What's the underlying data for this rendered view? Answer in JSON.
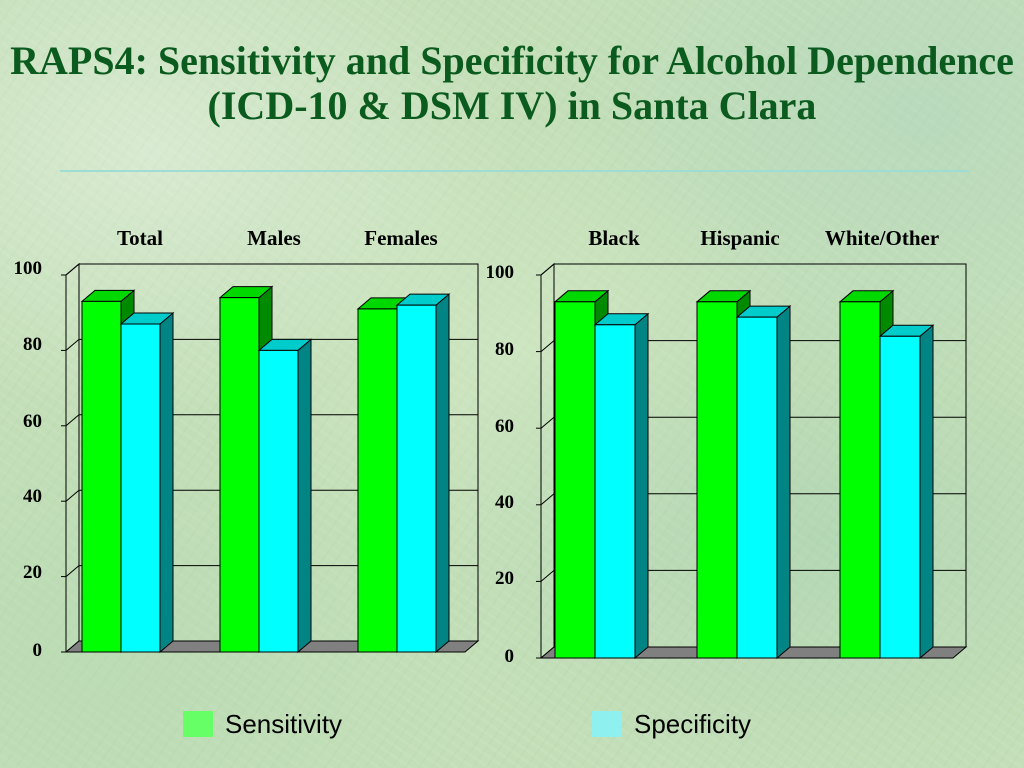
{
  "slide": {
    "title": "RAPS4: Sensitivity and Specificity for Alcohol Dependence (ICD-10 & DSM IV) in Santa Clara"
  },
  "colors": {
    "sensitivity_front": "#00ff00",
    "sensitivity_top": "#00d800",
    "sensitivity_side": "#008a00",
    "specificity_front": "#00ffff",
    "specificity_top": "#00cccc",
    "specificity_side": "#008484",
    "floor": "#808080",
    "gridline": "#000000"
  },
  "legend": {
    "sensitivity_label": "Sensitivity",
    "specificity_label": "Specificity",
    "sensitivity_color": "#66ff66",
    "specificity_color": "#8ff0f0"
  },
  "chart_data": [
    {
      "type": "bar",
      "categories": [
        "Total",
        "Males",
        "Females"
      ],
      "series": [
        {
          "name": "Sensitivity",
          "values": [
            93,
            94,
            91
          ]
        },
        {
          "name": "Specificity",
          "values": [
            87,
            80,
            92
          ]
        }
      ],
      "ylim": [
        0,
        100
      ],
      "yticks": [
        "0",
        "20",
        "40",
        "60",
        "80",
        "100"
      ],
      "grid": true,
      "legend_position": "bottom"
    },
    {
      "type": "bar",
      "categories": [
        "Black",
        "Hispanic",
        "White/Other"
      ],
      "series": [
        {
          "name": "Sensitivity",
          "values": [
            93,
            93,
            93
          ]
        },
        {
          "name": "Specificity",
          "values": [
            87,
            89,
            84
          ]
        }
      ],
      "ylim": [
        0,
        100
      ],
      "yticks": [
        "0",
        "20",
        "40",
        "60",
        "80",
        "100"
      ],
      "grid": true,
      "legend_position": "bottom"
    }
  ]
}
